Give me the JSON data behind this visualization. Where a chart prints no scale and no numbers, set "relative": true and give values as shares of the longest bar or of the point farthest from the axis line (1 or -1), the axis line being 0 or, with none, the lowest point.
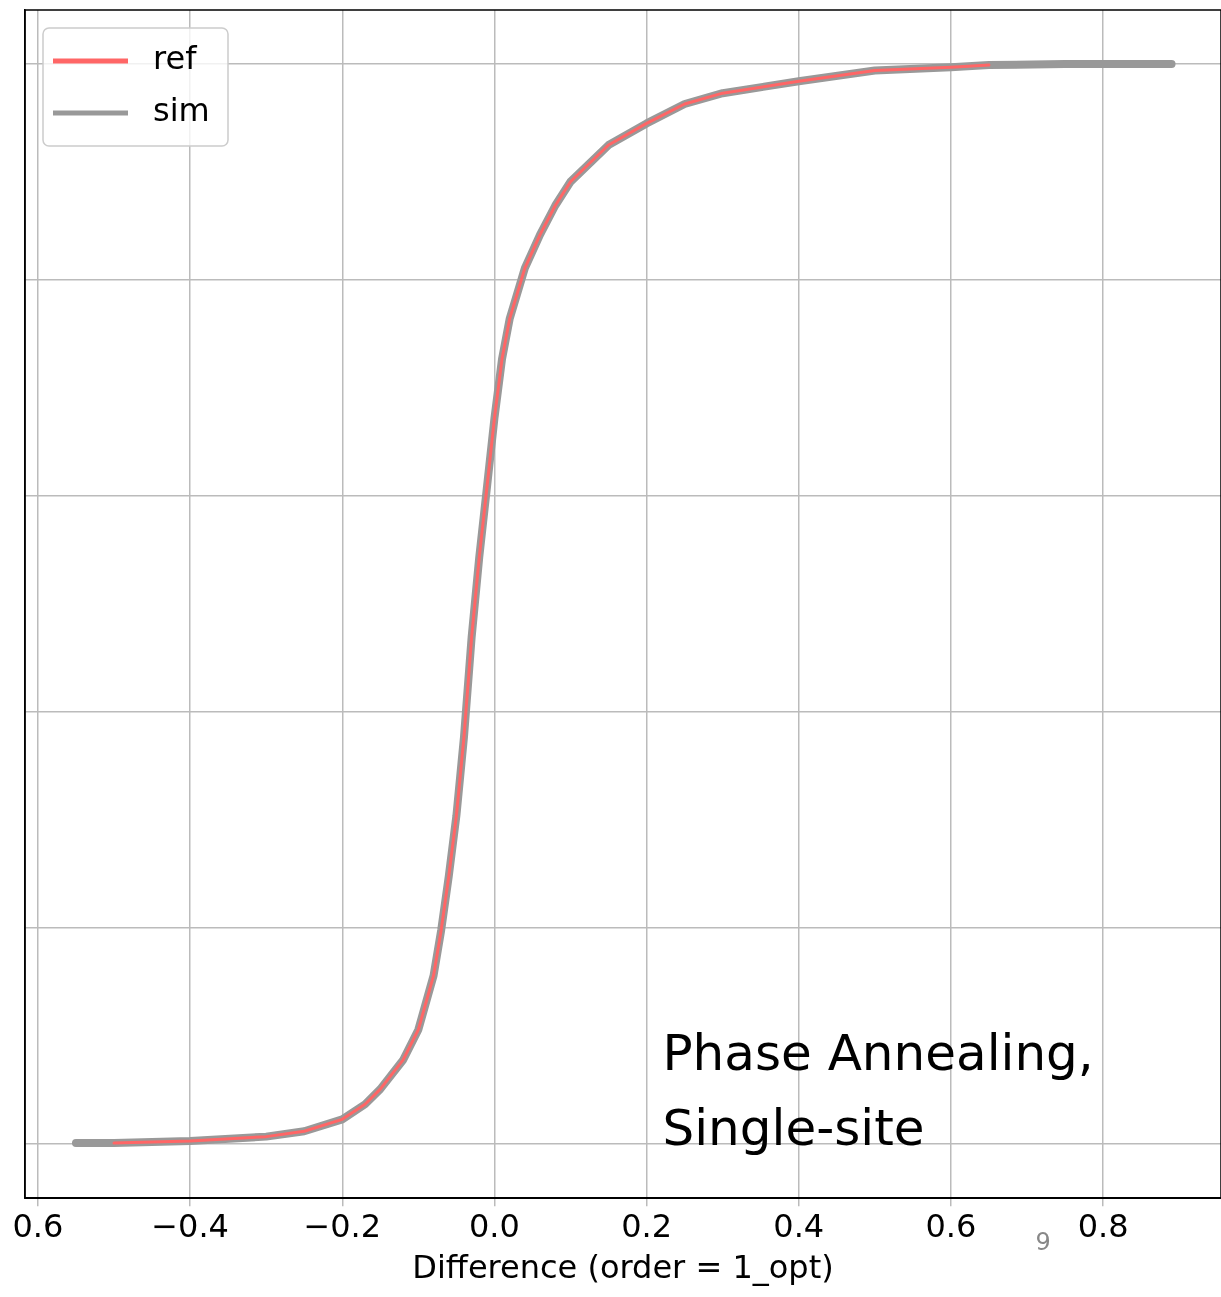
{
  "chart_data": {
    "type": "line",
    "relative": true,
    "xlabel": "Difference (order = 1_opt)",
    "xlim": [
      -0.617,
      0.955
    ],
    "xticks": [
      {
        "value": -0.6,
        "label": "0.6"
      },
      {
        "value": -0.4,
        "label": "−0.4"
      },
      {
        "value": -0.2,
        "label": "−0.2"
      },
      {
        "value": 0,
        "label": "0.0"
      },
      {
        "value": 0.2,
        "label": "0.2"
      },
      {
        "value": 0.4,
        "label": "0.4"
      },
      {
        "value": 0.6,
        "label": "0.6"
      },
      {
        "value": 0.8,
        "label": "0.8"
      }
    ],
    "tick_labels": "x",
    "grid": true,
    "legend": "top left",
    "marker": "none",
    "line_style": "solid",
    "annotations": [
      "Phase Annealing,\nSingle-site",
      "9"
    ],
    "series": [
      {
        "name": "ref",
        "color": "#ff6666",
        "x": [
          -0.5,
          -0.4,
          -0.3,
          -0.25,
          -0.2,
          -0.17,
          -0.15,
          -0.12,
          -0.1,
          -0.08,
          -0.07,
          -0.06,
          -0.05,
          -0.04,
          -0.03,
          -0.02,
          -0.01,
          0,
          0.01,
          0.02,
          0.04,
          0.06,
          0.08,
          0.1,
          0.15,
          0.2,
          0.25,
          0.3,
          0.4,
          0.5,
          0.6,
          0.65
        ],
        "values": [
          0.001,
          0.003,
          0.007,
          0.012,
          0.023,
          0.037,
          0.051,
          0.078,
          0.106,
          0.156,
          0.198,
          0.248,
          0.304,
          0.377,
          0.469,
          0.543,
          0.607,
          0.672,
          0.727,
          0.764,
          0.811,
          0.842,
          0.869,
          0.891,
          0.925,
          0.945,
          0.963,
          0.973,
          0.984,
          0.994,
          0.997,
          0.999
        ]
      },
      {
        "name": "sim",
        "color": "#999999",
        "x": [
          -0.55,
          -0.5,
          -0.4,
          -0.3,
          -0.25,
          -0.2,
          -0.17,
          -0.15,
          -0.12,
          -0.1,
          -0.08,
          -0.07,
          -0.06,
          -0.05,
          -0.04,
          -0.03,
          -0.02,
          -0.01,
          0,
          0.01,
          0.02,
          0.04,
          0.06,
          0.08,
          0.1,
          0.15,
          0.2,
          0.25,
          0.3,
          0.4,
          0.5,
          0.6,
          0.65,
          0.75,
          0.89
        ],
        "values": [
          0.001,
          0.001,
          0.003,
          0.007,
          0.012,
          0.023,
          0.037,
          0.051,
          0.078,
          0.106,
          0.156,
          0.198,
          0.248,
          0.304,
          0.377,
          0.469,
          0.543,
          0.607,
          0.672,
          0.727,
          0.764,
          0.811,
          0.842,
          0.869,
          0.891,
          0.925,
          0.945,
          0.963,
          0.973,
          0.984,
          0.994,
          0.997,
          0.999,
          1,
          1
        ]
      }
    ]
  }
}
